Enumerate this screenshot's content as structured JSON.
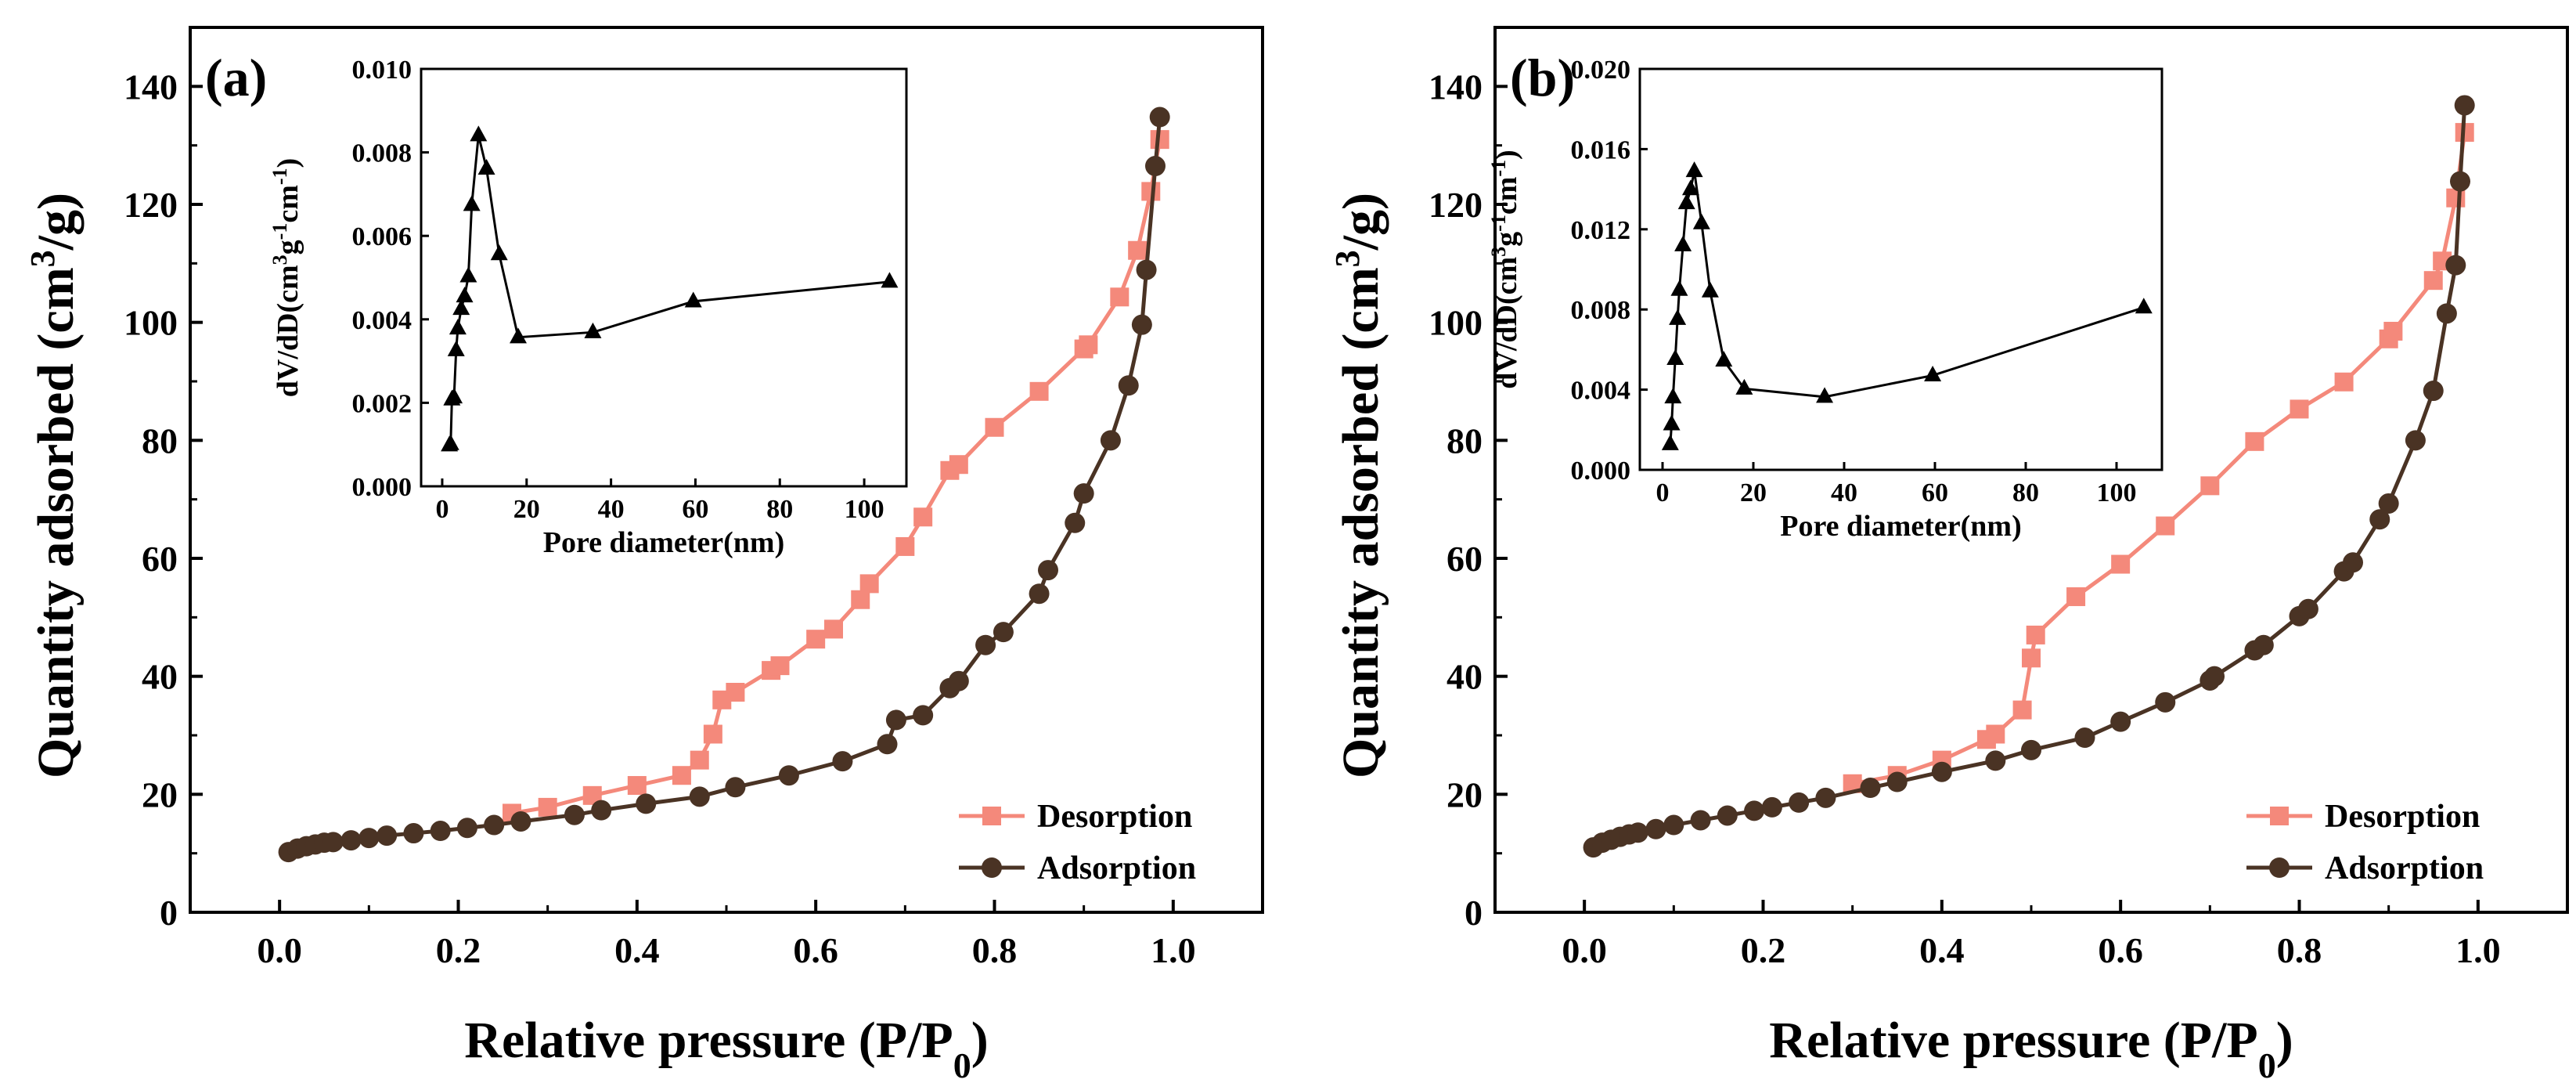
{
  "colors": {
    "desorption": "#f4897b",
    "adsorption": "#4a3324",
    "inset_line": "#000000",
    "axes": "#000000"
  },
  "chart_data": [
    {
      "type": "line",
      "panel_label": "(a)",
      "xlabel": "Relative pressure (P/P",
      "xlabel_sub": "0",
      "xlabel_end": ")",
      "ylabel": "Quantity adsorbed (cm",
      "ylabel_sup": "3",
      "ylabel_end": "/g)",
      "xlim": [
        -0.1,
        1.1
      ],
      "ylim": [
        0,
        150
      ],
      "xticks": [
        "0.0",
        "0.2",
        "0.4",
        "0.6",
        "0.8",
        "1.0"
      ],
      "yticks": [
        "0",
        "20",
        "40",
        "60",
        "80",
        "100",
        "120",
        "140"
      ],
      "legend_position": "bottom-right",
      "series": [
        {
          "name": "Desorption",
          "marker": "square",
          "x": [
            0.26,
            0.3,
            0.35,
            0.4,
            0.45,
            0.47,
            0.485,
            0.495,
            0.51,
            0.55,
            0.56,
            0.6,
            0.62,
            0.65,
            0.66,
            0.7,
            0.72,
            0.75,
            0.76,
            0.8,
            0.85,
            0.9,
            0.905,
            0.94,
            0.96,
            0.975,
            0.985
          ],
          "y": [
            16.8,
            17.8,
            19.8,
            21.5,
            23.2,
            25.8,
            30.2,
            36.0,
            37.3,
            41.0,
            41.8,
            46.3,
            48.0,
            53.0,
            55.7,
            62.0,
            67.0,
            74.9,
            75.9,
            82.2,
            88.3,
            95.5,
            96.2,
            104.3,
            112.2,
            122.2,
            131.0
          ]
        },
        {
          "name": "Adsorption",
          "marker": "circle",
          "x": [
            0.01,
            0.02,
            0.03,
            0.04,
            0.05,
            0.06,
            0.08,
            0.1,
            0.12,
            0.15,
            0.18,
            0.21,
            0.24,
            0.27,
            0.33,
            0.36,
            0.41,
            0.47,
            0.51,
            0.57,
            0.63,
            0.68,
            0.69,
            0.72,
            0.75,
            0.76,
            0.79,
            0.81,
            0.85,
            0.86,
            0.89,
            0.9,
            0.93,
            0.95,
            0.965,
            0.97,
            0.98,
            0.985
          ],
          "y": [
            10.2,
            10.8,
            11.2,
            11.5,
            11.8,
            11.9,
            12.2,
            12.6,
            13.0,
            13.4,
            13.8,
            14.3,
            14.8,
            15.4,
            16.5,
            17.3,
            18.4,
            19.6,
            21.2,
            23.2,
            25.6,
            28.5,
            32.6,
            33.4,
            38.0,
            39.2,
            45.3,
            47.5,
            54.0,
            58.0,
            66.0,
            71.0,
            80.0,
            89.3,
            99.6,
            108.9,
            126.5,
            134.8
          ]
        }
      ],
      "inset": {
        "type": "line",
        "xlabel": "Pore diameter(nm)",
        "ylabel": "dV/dD(cm",
        "ylabel_sup1": "3",
        "ylabel_mid": "g",
        "ylabel_sup2": "-1",
        "ylabel_mid2": "cm",
        "ylabel_sup3": "-1",
        "ylabel_end": ")",
        "xlim": [
          -5,
          110
        ],
        "ylim": [
          0,
          0.01
        ],
        "xticks": [
          "0",
          "20",
          "40",
          "60",
          "80",
          "100"
        ],
        "yticks": [
          "0.000",
          "0.002",
          "0.004",
          "0.006",
          "0.008",
          "0.010"
        ],
        "marker": "triangle",
        "x": [
          1.7,
          2.0,
          2.3,
          2.8,
          3.3,
          3.7,
          4.5,
          5.3,
          6.2,
          7.0,
          8.6,
          10.5,
          13.5,
          18.0,
          35.7,
          59.5,
          106.0
        ],
        "y": [
          0.00098,
          0.00101,
          0.00208,
          0.00213,
          0.00326,
          0.00378,
          0.00425,
          0.00455,
          0.00503,
          0.00674,
          0.00841,
          0.00761,
          0.00556,
          0.00357,
          0.00369,
          0.00443,
          0.0049
        ]
      }
    },
    {
      "type": "line",
      "panel_label": "(b)",
      "xlabel": "Relative pressure (P/P",
      "xlabel_sub": "0",
      "xlabel_end": ")",
      "ylabel": "Quantity adsorbed (cm",
      "ylabel_sup": "3",
      "ylabel_end": "/g)",
      "xlim": [
        -0.1,
        1.1
      ],
      "ylim": [
        0,
        150
      ],
      "xticks": [
        "0.0",
        "0.2",
        "0.4",
        "0.6",
        "0.8",
        "1.0"
      ],
      "yticks": [
        "0",
        "20",
        "40",
        "60",
        "80",
        "100",
        "120",
        "140"
      ],
      "legend_position": "bottom-right",
      "series": [
        {
          "name": "Desorption",
          "marker": "square",
          "x": [
            0.3,
            0.35,
            0.4,
            0.45,
            0.46,
            0.49,
            0.5,
            0.505,
            0.55,
            0.6,
            0.65,
            0.7,
            0.75,
            0.8,
            0.85,
            0.9,
            0.905,
            0.95,
            0.96,
            0.975,
            0.985
          ],
          "y": [
            21.8,
            23.2,
            25.8,
            29.3,
            30.2,
            34.3,
            43.1,
            47.0,
            53.5,
            59.0,
            65.5,
            72.3,
            79.8,
            85.3,
            89.9,
            97.2,
            98.5,
            107.1,
            110.4,
            121.1,
            132.2
          ]
        },
        {
          "name": "Adsorption",
          "marker": "circle",
          "x": [
            0.01,
            0.02,
            0.03,
            0.04,
            0.05,
            0.06,
            0.08,
            0.1,
            0.13,
            0.16,
            0.19,
            0.21,
            0.24,
            0.27,
            0.32,
            0.35,
            0.4,
            0.46,
            0.5,
            0.56,
            0.6,
            0.65,
            0.7,
            0.705,
            0.75,
            0.76,
            0.8,
            0.81,
            0.85,
            0.86,
            0.89,
            0.9,
            0.93,
            0.95,
            0.965,
            0.975,
            0.98,
            0.985
          ],
          "y": [
            11.0,
            11.8,
            12.3,
            12.8,
            13.2,
            13.5,
            14.1,
            14.8,
            15.6,
            16.4,
            17.2,
            17.8,
            18.6,
            19.4,
            21.1,
            22.1,
            23.8,
            25.7,
            27.5,
            29.6,
            32.3,
            35.6,
            39.3,
            40.0,
            44.4,
            45.3,
            50.2,
            51.4,
            57.8,
            59.3,
            66.6,
            69.3,
            80.0,
            88.4,
            101.5,
            109.7,
            123.9,
            136.8
          ]
        }
      ],
      "inset": {
        "type": "line",
        "xlabel": "Pore diameter(nm)",
        "ylabel": "dV/dD(cm",
        "ylabel_sup1": "3",
        "ylabel_mid": "g",
        "ylabel_sup2": "-1",
        "ylabel_mid2": "cm",
        "ylabel_sup3": "-1",
        "ylabel_end": ")",
        "xlim": [
          -5,
          110
        ],
        "ylim": [
          0,
          0.02
        ],
        "xticks": [
          "0",
          "20",
          "40",
          "60",
          "80",
          "100"
        ],
        "yticks": [
          "0.000",
          "0.004",
          "0.008",
          "0.012",
          "0.016",
          "0.020"
        ],
        "marker": "triangle",
        "x": [
          1.7,
          2.0,
          2.3,
          2.8,
          3.3,
          3.7,
          4.5,
          5.3,
          6.2,
          7.0,
          8.6,
          10.5,
          13.5,
          18.0,
          35.7,
          59.5,
          106.0
        ],
        "y": [
          0.00128,
          0.00227,
          0.00361,
          0.00553,
          0.00753,
          0.00898,
          0.0112,
          0.0133,
          0.014,
          0.0149,
          0.0123,
          0.0089,
          0.00545,
          0.00405,
          0.00364,
          0.00471,
          0.0081
        ]
      }
    }
  ]
}
